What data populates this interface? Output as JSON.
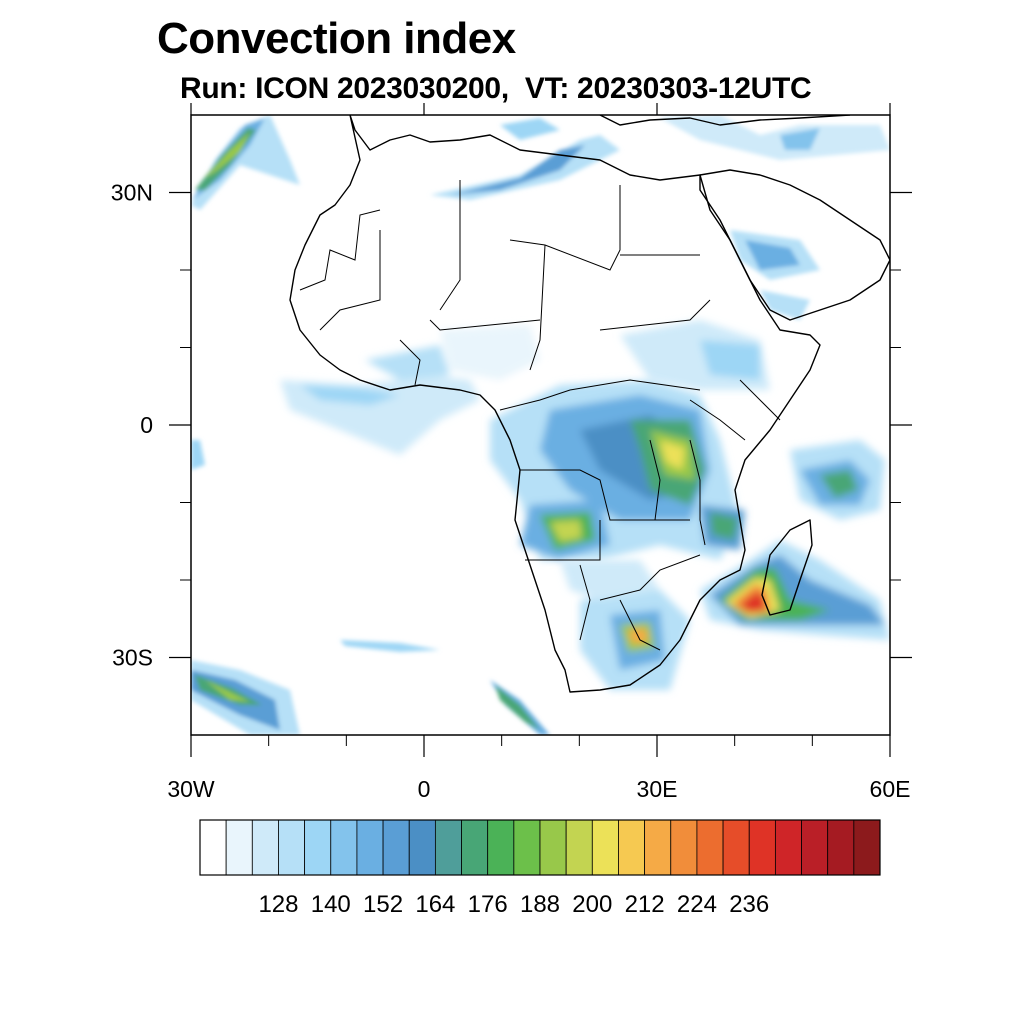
{
  "header": {
    "title": "Convection index",
    "subtitle": "Run: ICON 2023030200,  VT: 20230303-12UTC"
  },
  "map": {
    "lon_range": [
      -30,
      60
    ],
    "lat_range": [
      -40,
      40
    ],
    "lon_ticks": [
      {
        "value": -30,
        "label": "30W"
      },
      {
        "value": 0,
        "label": "0"
      },
      {
        "value": 30,
        "label": "30E"
      },
      {
        "value": 60,
        "label": "60E"
      }
    ],
    "lat_ticks": [
      {
        "value": 30,
        "label": "30N"
      },
      {
        "value": 0,
        "label": "0"
      },
      {
        "value": -30,
        "label": "30S"
      }
    ],
    "minor_lon_ticks": [
      -20,
      -10,
      10,
      20,
      40,
      50
    ],
    "minor_lat_ticks": [
      20,
      10,
      -10,
      -20
    ]
  },
  "colorbar": {
    "colors": [
      "#ffffff",
      "#e9f5fc",
      "#cfeaf9",
      "#b6e0f7",
      "#9dd6f5",
      "#83c3ec",
      "#6aafe2",
      "#5a9ed5",
      "#4b8fc5",
      "#4f9e9a",
      "#48a676",
      "#4bb257",
      "#6cc04a",
      "#98c84a",
      "#c3d451",
      "#ece158",
      "#f6c951",
      "#f5aa46",
      "#f18d3a",
      "#ec6d2f",
      "#e64d29",
      "#df3326",
      "#cf2528",
      "#ba1f27",
      "#a51b22",
      "#8c1a1c"
    ],
    "labels": [
      "128",
      "140",
      "152",
      "164",
      "176",
      "188",
      "200",
      "212",
      "224",
      "236"
    ]
  }
}
